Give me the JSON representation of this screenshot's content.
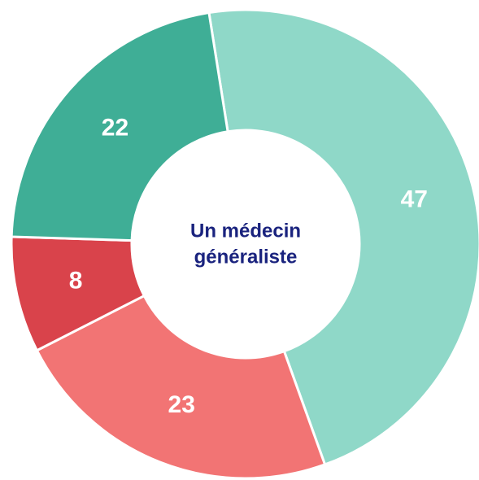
{
  "chart_data": {
    "type": "donut",
    "center_label": [
      "Un médecin",
      "généraliste"
    ],
    "values": [
      47,
      23,
      8,
      22
    ],
    "colors": [
      "#8fd8c8",
      "#f27474",
      "#d9434b",
      "#3fae96"
    ],
    "start_angle": -9
  }
}
